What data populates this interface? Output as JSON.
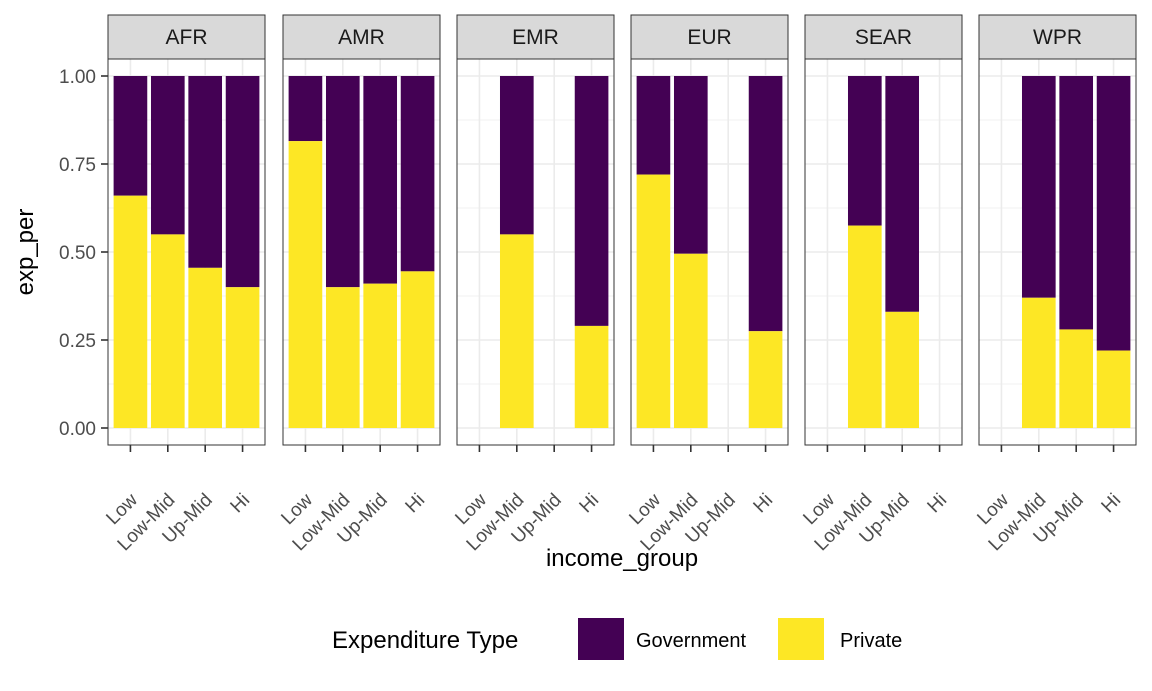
{
  "chart_data": {
    "type": "bar",
    "stacked": true,
    "facet_by": "region",
    "xlabel": "income_group",
    "ylabel": "exp_per",
    "ylim": [
      0,
      1.05
    ],
    "yticks": [
      "0.00",
      "0.25",
      "0.50",
      "0.75",
      "1.00"
    ],
    "categories": [
      "Low",
      "Low-Mid",
      "Up-Mid",
      "Hi"
    ],
    "legend": {
      "title": "Expenditure Type",
      "position": "bottom",
      "entries": [
        {
          "name": "Government",
          "color": "#440154"
        },
        {
          "name": "Private",
          "color": "#FDE725"
        }
      ]
    },
    "grid": true,
    "panels": [
      {
        "region": "AFR",
        "private": [
          0.66,
          0.55,
          0.455,
          0.4
        ],
        "government": [
          0.34,
          0.45,
          0.545,
          0.6
        ]
      },
      {
        "region": "AMR",
        "private": [
          0.815,
          0.4,
          0.41,
          0.445
        ],
        "government": [
          0.185,
          0.6,
          0.59,
          0.555
        ]
      },
      {
        "region": "EMR",
        "private": [
          null,
          0.55,
          null,
          0.29
        ],
        "government": [
          null,
          0.45,
          null,
          0.71
        ]
      },
      {
        "region": "EUR",
        "private": [
          0.72,
          0.495,
          null,
          0.275
        ],
        "government": [
          0.28,
          0.505,
          null,
          0.725
        ]
      },
      {
        "region": "SEAR",
        "private": [
          null,
          0.575,
          0.33,
          null
        ],
        "government": [
          null,
          0.425,
          0.67,
          null
        ]
      },
      {
        "region": "WPR",
        "private": [
          null,
          0.37,
          0.28,
          0.22
        ],
        "government": [
          null,
          0.63,
          0.72,
          0.78
        ]
      }
    ]
  }
}
